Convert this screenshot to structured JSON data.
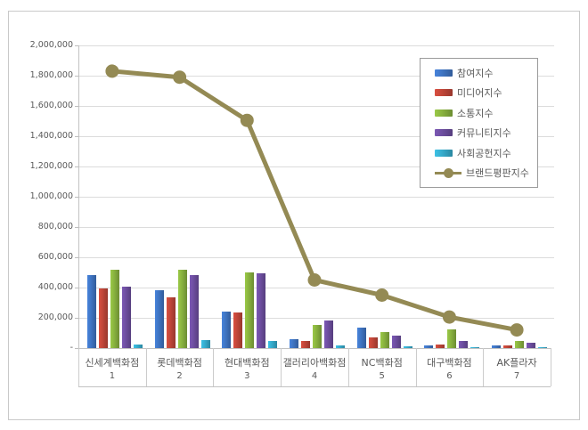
{
  "chart_data": {
    "type": "bar",
    "subtype": "grouped-bars-with-line-overlay",
    "title": "",
    "categories": [
      "신세계백화점",
      "롯데백화점",
      "현대백화점",
      "갤러리아백화점",
      "NC백화점",
      "대구백화점",
      "AK플라자"
    ],
    "category_ranks": [
      "1",
      "2",
      "3",
      "4",
      "5",
      "6",
      "7"
    ],
    "series": [
      {
        "name": "참여지수",
        "type": "bar",
        "color": "#3e73c0",
        "values": [
          485000,
          380000,
          240000,
          60000,
          135000,
          20000,
          15000
        ]
      },
      {
        "name": "미디어지수",
        "type": "bar",
        "color": "#be4538",
        "values": [
          395000,
          335000,
          235000,
          50000,
          70000,
          25000,
          20000
        ]
      },
      {
        "name": "소통지수",
        "type": "bar",
        "color": "#87b03e",
        "values": [
          520000,
          520000,
          500000,
          155000,
          105000,
          125000,
          45000
        ]
      },
      {
        "name": "커뮤니티지수",
        "type": "bar",
        "color": "#6c4d9e",
        "values": [
          405000,
          485000,
          495000,
          185000,
          85000,
          45000,
          35000
        ]
      },
      {
        "name": "사회공헌지수",
        "type": "bar",
        "color": "#35a9c9",
        "values": [
          25000,
          55000,
          45000,
          15000,
          10000,
          5000,
          5000
        ]
      },
      {
        "name": "브랜드평판지수",
        "type": "line",
        "color": "#948a54",
        "values": [
          1830000,
          1790000,
          1505000,
          450000,
          350000,
          205000,
          120000
        ]
      }
    ],
    "y_axis": {
      "min": 0,
      "max": 2000000,
      "step": 200000,
      "tick_labels_top_to_bottom": [
        "2,000,000",
        "1,800,000",
        "1,600,000",
        "1,400,000",
        "1,200,000",
        "1,000,000",
        "800,000",
        "600,000",
        "400,000",
        "200,000",
        "-"
      ]
    },
    "x_axis": {
      "multilevel": true
    },
    "grid": true,
    "legend_position": "top-right",
    "legend_entries": [
      "참여지수",
      "미디어지수",
      "소통지수",
      "커뮤니티지수",
      "사회공헌지수",
      "브랜드평판지수"
    ]
  },
  "colors": {
    "frame_border": "#c9c9c9",
    "gridline": "#dcdcdc",
    "axis_text": "#595959",
    "legend_border": "#9b9b9b"
  }
}
